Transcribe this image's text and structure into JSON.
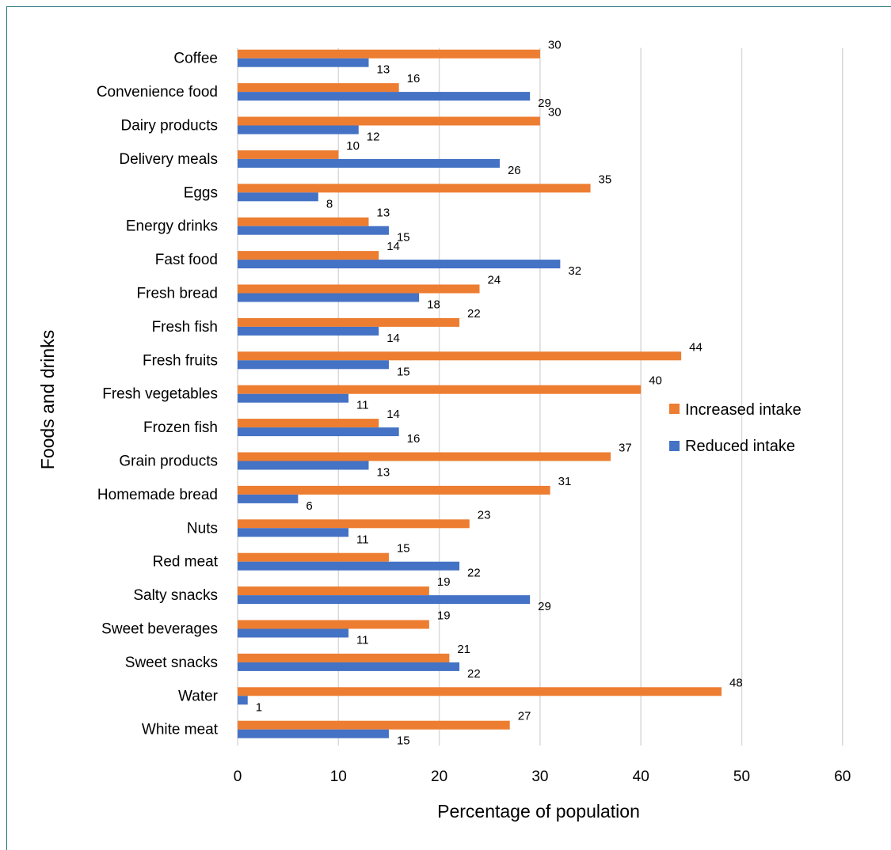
{
  "chart_data": {
    "type": "bar",
    "orientation": "horizontal",
    "categories": [
      "Coffee",
      "Convenience food",
      "Dairy products",
      "Delivery meals",
      "Eggs",
      "Energy  drinks",
      "Fast food",
      "Fresh bread",
      "Fresh fish",
      "Fresh fruits",
      "Fresh vegetables",
      "Frozen fish",
      "Grain products",
      "Homemade bread",
      "Nuts",
      "Red meat",
      "Salty snacks",
      "Sweet beverages",
      "Sweet snacks",
      "Water",
      "White meat"
    ],
    "series": [
      {
        "name": "Increased intake",
        "color": "#ed7d31",
        "values": [
          30,
          16,
          30,
          10,
          35,
          13,
          14,
          24,
          22,
          44,
          40,
          14,
          37,
          31,
          23,
          15,
          19,
          19,
          21,
          48,
          27
        ]
      },
      {
        "name": "Reduced intake",
        "color": "#4472c4",
        "values": [
          13,
          29,
          12,
          26,
          8,
          15,
          32,
          18,
          14,
          15,
          11,
          16,
          13,
          6,
          11,
          22,
          29,
          11,
          22,
          1,
          15
        ]
      }
    ],
    "xlabel": "Percentage of population",
    "ylabel": "Foods and drinks",
    "xlim": [
      0,
      60
    ],
    "xticks": [
      0,
      10,
      20,
      30,
      40,
      50,
      60
    ],
    "grid": "vertical",
    "legend_position": "right"
  }
}
